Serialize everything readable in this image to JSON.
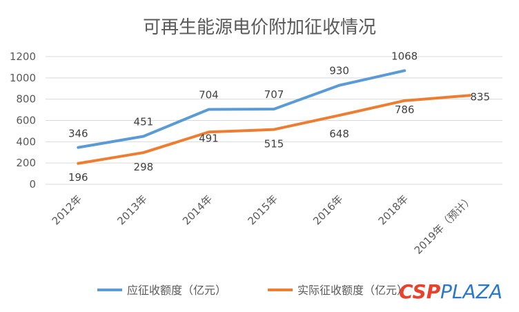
{
  "chart_data": {
    "type": "line",
    "title": "可再生能源电价附加征收情况",
    "categories": [
      "2012年",
      "2013年",
      "2014年",
      "2015年",
      "2016年",
      "2018年",
      "2019年（预计）"
    ],
    "series": [
      {
        "name": "应征收额度（亿元）",
        "color": "#5b9bd5",
        "values": [
          346,
          451,
          704,
          707,
          930,
          1068,
          null
        ]
      },
      {
        "name": "实际征收额度（亿元）",
        "color": "#ed7d31",
        "values": [
          196,
          298,
          491,
          515,
          648,
          786,
          835
        ]
      }
    ],
    "yticks": [
      0,
      200,
      400,
      600,
      800,
      1000,
      1200
    ],
    "ylim": [
      0,
      1200
    ],
    "grid": true,
    "legend": "bottom",
    "xlabel": "",
    "ylabel": ""
  },
  "watermark": {
    "part1": "CSP",
    "part2": "PLAZA"
  }
}
